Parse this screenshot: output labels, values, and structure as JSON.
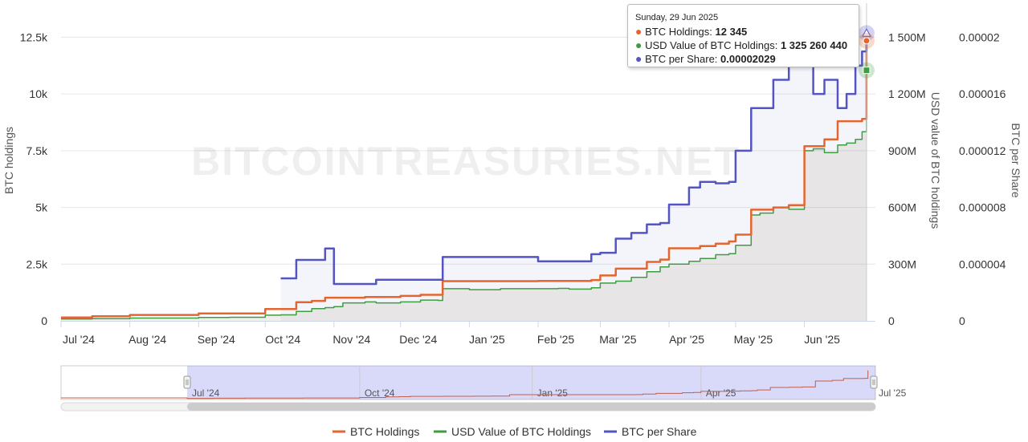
{
  "chart_data": {
    "type": "line",
    "watermark": "BITCOINTREASURIES.NET",
    "x": [
      "2024-07-01",
      "2024-07-15",
      "2024-08-01",
      "2024-08-15",
      "2024-09-01",
      "2024-09-15",
      "2024-10-01",
      "2024-10-08",
      "2024-10-15",
      "2024-10-22",
      "2024-10-28",
      "2024-10-31",
      "2024-11-01",
      "2024-11-05",
      "2024-11-15",
      "2024-11-20",
      "2024-12-01",
      "2024-12-10",
      "2024-12-18",
      "2024-12-20",
      "2025-01-01",
      "2025-01-15",
      "2025-02-01",
      "2025-02-10",
      "2025-02-15",
      "2025-02-25",
      "2025-03-01",
      "2025-03-08",
      "2025-03-15",
      "2025-03-22",
      "2025-03-28",
      "2025-04-01",
      "2025-04-10",
      "2025-04-15",
      "2025-04-22",
      "2025-04-28",
      "2025-05-01",
      "2025-05-08",
      "2025-05-12",
      "2025-05-18",
      "2025-05-25",
      "2025-06-01",
      "2025-06-05",
      "2025-06-10",
      "2025-06-16",
      "2025-06-20",
      "2025-06-24",
      "2025-06-27",
      "2025-06-29"
    ],
    "y_axes": [
      {
        "title": "BTC holdings",
        "ticks": [
          "0",
          "2.5k",
          "5k",
          "7.5k",
          "10k",
          "12.5k"
        ],
        "range": [
          0,
          14000
        ]
      },
      {
        "title": "USD value of BTC holdings",
        "ticks": [
          "0",
          "300M",
          "600M",
          "900M",
          "1 200M",
          "1 500M"
        ],
        "range": [
          0,
          1680000000
        ]
      },
      {
        "title": "BTC per Share",
        "ticks": [
          "0",
          "0.000004",
          "0.000008",
          "0.000012",
          "0.000016",
          "0.00002"
        ],
        "range": [
          0,
          2.24e-05
        ]
      }
    ],
    "x_ticks": [
      "Jul '24",
      "Aug '24",
      "Sep '24",
      "Oct '24",
      "Nov '24",
      "Dec '24",
      "Jan '25",
      "Feb '25",
      "Mar '25",
      "Apr '25",
      "May '25",
      "Jun '25"
    ],
    "series": [
      {
        "name": "BTC Holdings",
        "axis": 0,
        "color": "#e4662f",
        "values": [
          150,
          200,
          260,
          260,
          330,
          330,
          520,
          520,
          820,
          880,
          1020,
          1020,
          1020,
          1020,
          1050,
          1050,
          1100,
          1150,
          1150,
          1750,
          1750,
          1750,
          1760,
          1760,
          1760,
          1800,
          2000,
          2300,
          2300,
          2600,
          2700,
          3200,
          3200,
          3300,
          3400,
          3500,
          3800,
          4900,
          4900,
          5000,
          5100,
          7700,
          7700,
          8000,
          8800,
          8800,
          8800,
          8900,
          12345
        ]
      },
      {
        "name": "USD Value of BTC Holdings",
        "axis": 1,
        "color": "#3e9c41",
        "values": [
          10000000,
          12000000,
          15000000,
          15000000,
          18000000,
          19000000,
          30000000,
          32000000,
          50000000,
          65000000,
          70000000,
          70000000,
          75000000,
          95000000,
          100000000,
          95000000,
          100000000,
          110000000,
          108000000,
          170000000,
          165000000,
          170000000,
          170000000,
          172000000,
          168000000,
          175000000,
          200000000,
          210000000,
          230000000,
          260000000,
          285000000,
          300000000,
          315000000,
          330000000,
          350000000,
          355000000,
          400000000,
          560000000,
          570000000,
          600000000,
          590000000,
          900000000,
          910000000,
          890000000,
          930000000,
          940000000,
          960000000,
          1000000000,
          1325260440
        ]
      },
      {
        "name": "BTC per Share",
        "axis": 2,
        "color": "#5454c3",
        "values": [
          null,
          null,
          null,
          null,
          null,
          null,
          null,
          3e-06,
          4.3e-06,
          4.3e-06,
          5.1e-06,
          5.1e-06,
          2.6e-06,
          2.6e-06,
          2.6e-06,
          2.9e-06,
          2.9e-06,
          2.9e-06,
          2.9e-06,
          4.5e-06,
          4.5e-06,
          4.5e-06,
          4.2e-06,
          4.2e-06,
          4.2e-06,
          4.7e-06,
          4.8e-06,
          5.8e-06,
          6.2e-06,
          6.8e-06,
          6.9e-06,
          8.2e-06,
          9.4e-06,
          9.8e-06,
          9.7e-06,
          9.8e-06,
          1.2e-05,
          1.5e-05,
          1.5e-05,
          1.7e-05,
          1.8e-05,
          2e-05,
          1.6e-05,
          1.7e-05,
          1.5e-05,
          1.6e-05,
          1.8e-05,
          1.9e-05,
          2.029e-05
        ]
      }
    ],
    "navigator": {
      "labels": [
        "Jul '24",
        "Oct '24",
        "Jan '25",
        "Apr '25",
        "Jul '25"
      ]
    }
  },
  "tooltip": {
    "date": "Sunday, 29 Jun 2025",
    "rows": [
      {
        "label": "BTC Holdings: ",
        "value": "12 345",
        "color": "#e4662f"
      },
      {
        "label": "USD Value of BTC Holdings: ",
        "value": "1 325 260 440",
        "color": "#3e9c41"
      },
      {
        "label": "BTC per Share: ",
        "value": "0.00002029",
        "color": "#5454c3"
      }
    ]
  },
  "legend": [
    {
      "label": "BTC Holdings",
      "color": "#e4662f"
    },
    {
      "label": "USD Value of BTC Holdings",
      "color": "#3e9c41"
    },
    {
      "label": "BTC per Share",
      "color": "#5454c3"
    }
  ]
}
